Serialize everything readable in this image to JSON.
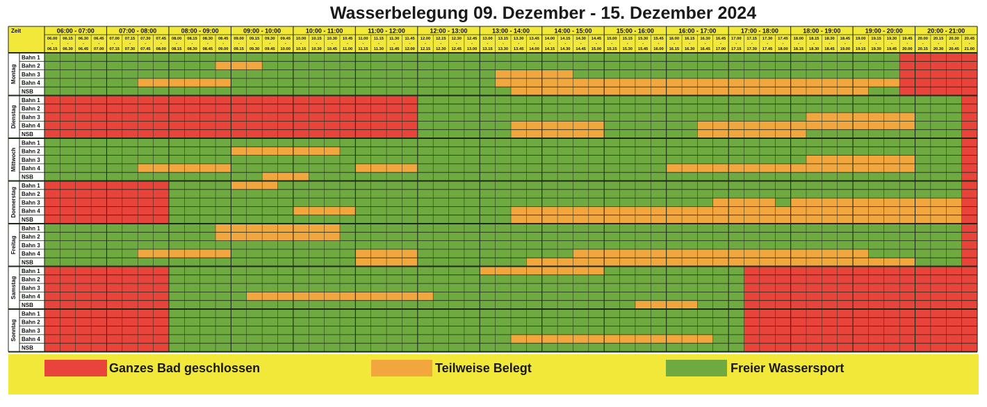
{
  "title": "Wasserbelegung 09. Dezember - 15. Dezember 2024",
  "zeit_label": "Zeit",
  "colors": {
    "closed": "#e8443c",
    "partial": "#f2a73e",
    "free": "#6eaa3f",
    "yellow": "#f2e83a",
    "line": "#1c2a18"
  },
  "hours": [
    "06:00 - 07:00",
    "07:00 - 08:00",
    "08:00 - 09:00",
    "09:00 - 10:00",
    "10:00 - 11:00",
    "11:00 - 12:00",
    "12:00 - 13:00",
    "13:00 - 14:00",
    "14:00 - 15:00",
    "15:00 - 16:00",
    "16:00 - 17:00",
    "17:00 - 18:00",
    "18:00 - 19:00",
    "19:00 - 20:00",
    "20:00 - 21:00"
  ],
  "slots_start": [
    "06.00",
    "06.15",
    "06.30",
    "06.45",
    "07.00",
    "07.15",
    "07.30",
    "07.45",
    "08.00",
    "08.15",
    "08.30",
    "08.45",
    "09.00",
    "09.15",
    "09.30",
    "09.45",
    "10.00",
    "10.15",
    "10.30",
    "10.45",
    "11.00",
    "11.15",
    "11.30",
    "11.45",
    "12.00",
    "12.15",
    "12.30",
    "12.45",
    "13.00",
    "13.15",
    "13.30",
    "13.45",
    "14.00",
    "14.15",
    "14.30",
    "14.45",
    "15.00",
    "15.15",
    "15.30",
    "15.45",
    "16.00",
    "16.15",
    "16.30",
    "16.45",
    "17.00",
    "17.15",
    "17.30",
    "17.45",
    "18.00",
    "18.15",
    "18.30",
    "18.45",
    "19.00",
    "19.15",
    "19.30",
    "19.45",
    "20.00",
    "20.15",
    "20.30",
    "20.45"
  ],
  "slots_end": [
    "06.15",
    "06.30",
    "06.45",
    "07.00",
    "07.15",
    "07.30",
    "07.45",
    "08.00",
    "08.15",
    "08.30",
    "08.45",
    "09.00",
    "09.15",
    "09.30",
    "09.45",
    "10.00",
    "10.15",
    "10.30",
    "10.45",
    "11.00",
    "11.15",
    "11.30",
    "11.45",
    "12.00",
    "12.15",
    "12.30",
    "12.45",
    "13.00",
    "13.15",
    "13.30",
    "13.45",
    "14.00",
    "14.15",
    "14.30",
    "14.45",
    "15.00",
    "15.15",
    "15.30",
    "15.45",
    "16.00",
    "16.15",
    "16.30",
    "16.45",
    "17.00",
    "17.15",
    "17.30",
    "17.45",
    "18.00",
    "18.15",
    "18.30",
    "18.45",
    "19.00",
    "19.15",
    "19.30",
    "19.45",
    "20.00",
    "20.15",
    "20.30",
    "20.45",
    "21.00"
  ],
  "lanes": [
    "Bahn 1",
    "Bahn 2",
    "Bahn 3",
    "Bahn 4",
    "NSB"
  ],
  "days": [
    {
      "name": "Montag",
      "rows": [
        [
          [
            55,
            60,
            "c"
          ]
        ],
        [
          [
            11,
            14,
            "p"
          ],
          [
            55,
            60,
            "c"
          ]
        ],
        [
          [
            29,
            34,
            "p"
          ],
          [
            55,
            60,
            "c"
          ]
        ],
        [
          [
            6,
            12,
            "p"
          ],
          [
            29,
            60,
            "p"
          ],
          [
            55,
            60,
            "c"
          ]
        ],
        [
          [
            30,
            53,
            "p"
          ],
          [
            55,
            60,
            "c"
          ]
        ]
      ]
    },
    {
      "name": "Dienstag",
      "rows": [
        [
          [
            0,
            24,
            "c"
          ],
          [
            59,
            60,
            "c"
          ]
        ],
        [
          [
            0,
            24,
            "c"
          ],
          [
            59,
            60,
            "c"
          ]
        ],
        [
          [
            0,
            24,
            "c"
          ],
          [
            49,
            56,
            "p"
          ],
          [
            59,
            60,
            "c"
          ]
        ],
        [
          [
            0,
            24,
            "c"
          ],
          [
            30,
            36,
            "p"
          ],
          [
            42,
            56,
            "p"
          ],
          [
            59,
            60,
            "c"
          ]
        ],
        [
          [
            0,
            24,
            "c"
          ],
          [
            30,
            36,
            "p"
          ],
          [
            42,
            49,
            "p"
          ],
          [
            59,
            60,
            "c"
          ]
        ]
      ]
    },
    {
      "name": "Mittwoch",
      "rows": [
        [
          [
            59,
            60,
            "c"
          ]
        ],
        [
          [
            12,
            19,
            "p"
          ],
          [
            59,
            60,
            "c"
          ]
        ],
        [
          [
            49,
            56,
            "p"
          ],
          [
            59,
            60,
            "c"
          ]
        ],
        [
          [
            6,
            12,
            "p"
          ],
          [
            20,
            24,
            "p"
          ],
          [
            40,
            56,
            "p"
          ],
          [
            59,
            60,
            "c"
          ]
        ],
        [
          [
            14,
            17,
            "p"
          ],
          [
            59,
            60,
            "c"
          ]
        ]
      ]
    },
    {
      "name": "Donnerstag",
      "rows": [
        [
          [
            0,
            8,
            "c"
          ],
          [
            12,
            15,
            "p"
          ],
          [
            59,
            60,
            "c"
          ]
        ],
        [
          [
            0,
            8,
            "c"
          ],
          [
            59,
            60,
            "c"
          ]
        ],
        [
          [
            0,
            8,
            "c"
          ],
          [
            43,
            47,
            "p"
          ],
          [
            48,
            60,
            "p"
          ],
          [
            59,
            60,
            "c"
          ]
        ],
        [
          [
            0,
            8,
            "c"
          ],
          [
            16,
            20,
            "p"
          ],
          [
            30,
            60,
            "p"
          ],
          [
            59,
            60,
            "c"
          ]
        ],
        [
          [
            0,
            8,
            "c"
          ],
          [
            30,
            60,
            "p"
          ],
          [
            59,
            60,
            "c"
          ]
        ]
      ]
    },
    {
      "name": "Freitag",
      "rows": [
        [
          [
            11,
            19,
            "p"
          ],
          [
            59,
            60,
            "c"
          ]
        ],
        [
          [
            11,
            19,
            "p"
          ],
          [
            59,
            60,
            "c"
          ]
        ],
        [
          [
            59,
            60,
            "c"
          ]
        ],
        [
          [
            6,
            12,
            "p"
          ],
          [
            20,
            24,
            "p"
          ],
          [
            34,
            53,
            "p"
          ],
          [
            59,
            60,
            "c"
          ]
        ],
        [
          [
            20,
            24,
            "p"
          ],
          [
            31,
            56,
            "p"
          ],
          [
            59,
            60,
            "c"
          ]
        ]
      ]
    },
    {
      "name": "Samstag",
      "rows": [
        [
          [
            0,
            8,
            "c"
          ],
          [
            28,
            36,
            "p"
          ],
          [
            45,
            60,
            "c"
          ]
        ],
        [
          [
            0,
            8,
            "c"
          ],
          [
            45,
            60,
            "c"
          ]
        ],
        [
          [
            0,
            8,
            "c"
          ],
          [
            45,
            60,
            "c"
          ]
        ],
        [
          [
            0,
            8,
            "c"
          ],
          [
            13,
            25,
            "p"
          ],
          [
            45,
            60,
            "c"
          ]
        ],
        [
          [
            0,
            8,
            "c"
          ],
          [
            38,
            42,
            "p"
          ],
          [
            45,
            60,
            "c"
          ]
        ]
      ]
    },
    {
      "name": "Sonntag",
      "rows": [
        [
          [
            0,
            8,
            "c"
          ],
          [
            45,
            60,
            "c"
          ]
        ],
        [
          [
            0,
            8,
            "c"
          ],
          [
            45,
            60,
            "c"
          ]
        ],
        [
          [
            0,
            8,
            "c"
          ],
          [
            45,
            60,
            "c"
          ]
        ],
        [
          [
            0,
            8,
            "c"
          ],
          [
            30,
            43,
            "p"
          ],
          [
            45,
            60,
            "c"
          ]
        ],
        [
          [
            0,
            8,
            "c"
          ],
          [
            45,
            60,
            "c"
          ]
        ]
      ]
    }
  ],
  "legend": [
    {
      "label": "Ganzes Bad geschlossen",
      "status": "c"
    },
    {
      "label": "Teilweise Belegt",
      "status": "p"
    },
    {
      "label": "Freier Wassersport",
      "status": "f"
    }
  ]
}
